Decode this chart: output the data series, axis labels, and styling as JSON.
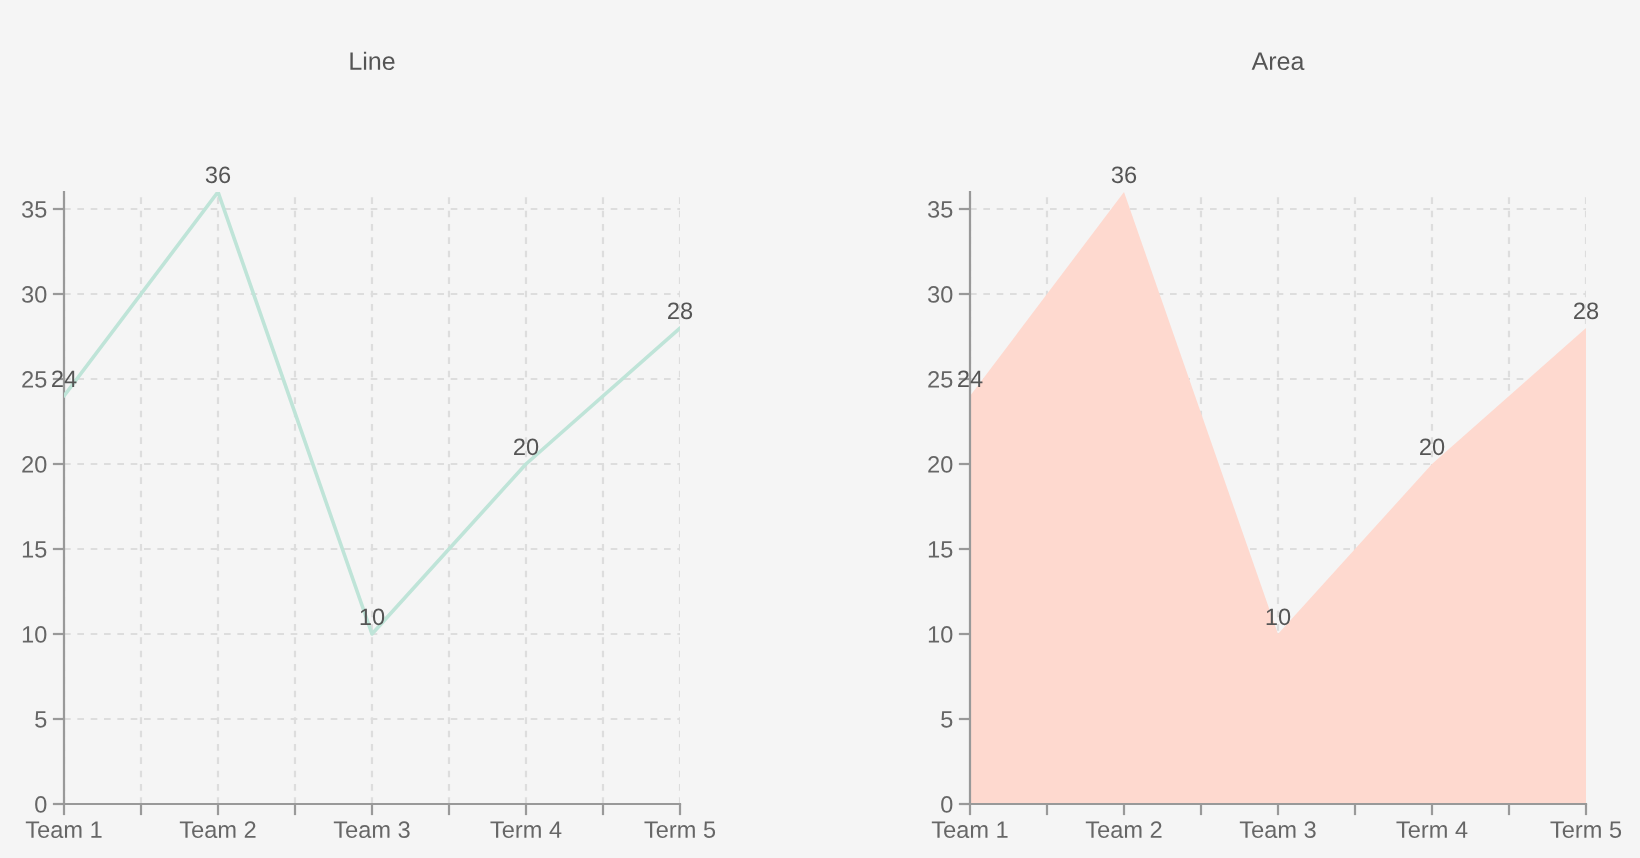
{
  "chart_data": [
    {
      "type": "line",
      "title": "Line",
      "categories": [
        "Team 1",
        "Team 2",
        "Team 3",
        "Term 4",
        "Term 5"
      ],
      "series": [
        {
          "color": "#bfe4d8",
          "values": [
            24,
            36,
            10,
            20,
            28
          ]
        }
      ],
      "ylim": [
        0,
        36
      ],
      "yticks": [
        0,
        5,
        10,
        15,
        20,
        25,
        30,
        35
      ],
      "grid": true,
      "data_labels": true
    },
    {
      "type": "area",
      "title": "Area",
      "categories": [
        "Team 1",
        "Team 2",
        "Team 3",
        "Term 4",
        "Term 5"
      ],
      "series": [
        {
          "color": "#fed9cf",
          "values": [
            24,
            36,
            10,
            20,
            28
          ]
        }
      ],
      "ylim": [
        0,
        36
      ],
      "yticks": [
        0,
        5,
        10,
        15,
        20,
        25,
        30,
        35
      ],
      "grid": true,
      "data_labels": true
    }
  ]
}
